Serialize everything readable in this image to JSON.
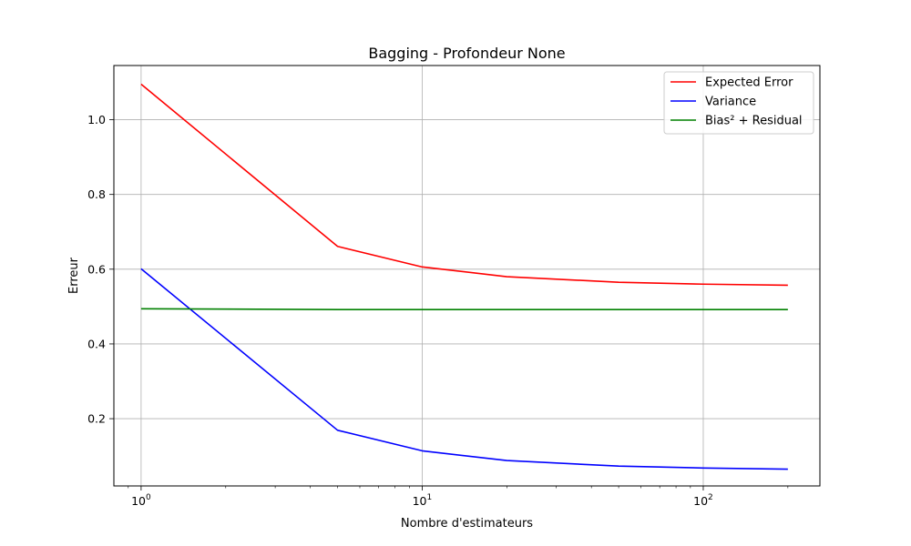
{
  "chart_data": {
    "type": "line",
    "title": "Bagging - Profondeur None",
    "xlabel": "Nombre d'estimateurs",
    "ylabel": "Erreur",
    "xscale": "log",
    "xlim": [
      0.8,
      260
    ],
    "ylim": [
      0.02,
      1.145
    ],
    "x": [
      1,
      5,
      10,
      20,
      50,
      100,
      200
    ],
    "x_ticks": [
      {
        "value": 1,
        "base": "10",
        "exp": "0"
      },
      {
        "value": 10,
        "base": "10",
        "exp": "1"
      },
      {
        "value": 100,
        "base": "10",
        "exp": "2"
      }
    ],
    "y_ticks": [
      0.2,
      0.4,
      0.6,
      0.8,
      1.0
    ],
    "y_tick_labels": [
      "0.2",
      "0.4",
      "0.6",
      "0.8",
      "1.0"
    ],
    "grid": true,
    "legend_position": "top-right",
    "series": [
      {
        "name": "Expected Error",
        "color": "#ff0000",
        "values": [
          1.095,
          0.661,
          0.606,
          0.58,
          0.565,
          0.56,
          0.557
        ]
      },
      {
        "name": "Variance",
        "color": "#0000ff",
        "values": [
          0.601,
          0.169,
          0.114,
          0.088,
          0.073,
          0.068,
          0.065
        ]
      },
      {
        "name": "Bias² + Residual",
        "color": "#008000",
        "values": [
          0.494,
          0.492,
          0.492,
          0.492,
          0.492,
          0.492,
          0.492
        ]
      }
    ]
  }
}
